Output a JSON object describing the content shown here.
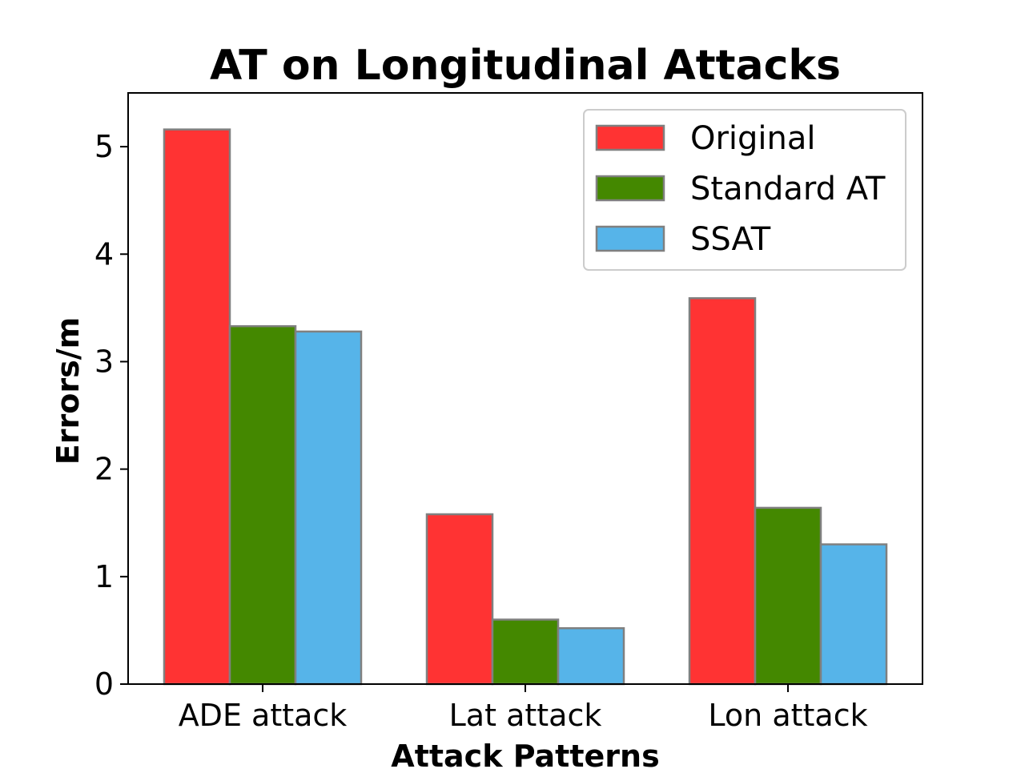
{
  "chart_data": {
    "type": "bar",
    "title": "AT on Longitudinal Attacks",
    "xlabel": "Attack Patterns",
    "ylabel": "Errors/m",
    "categories": [
      "ADE attack",
      "Lat attack",
      "Lon attack"
    ],
    "series": [
      {
        "name": "Original",
        "values": [
          5.16,
          1.58,
          3.59
        ],
        "color": "#ff3333"
      },
      {
        "name": "Standard AT",
        "values": [
          3.33,
          0.6,
          1.64
        ],
        "color": "#448800"
      },
      {
        "name": "SSAT",
        "values": [
          3.28,
          0.52,
          1.3
        ],
        "color": "#56b4e9"
      }
    ],
    "bar_edge_color": "#808080",
    "ylim": [
      0,
      5.5
    ],
    "yticks": [
      "0",
      "1",
      "2",
      "3",
      "4",
      "5"
    ],
    "grid": false,
    "legend_position": "top-right"
  }
}
